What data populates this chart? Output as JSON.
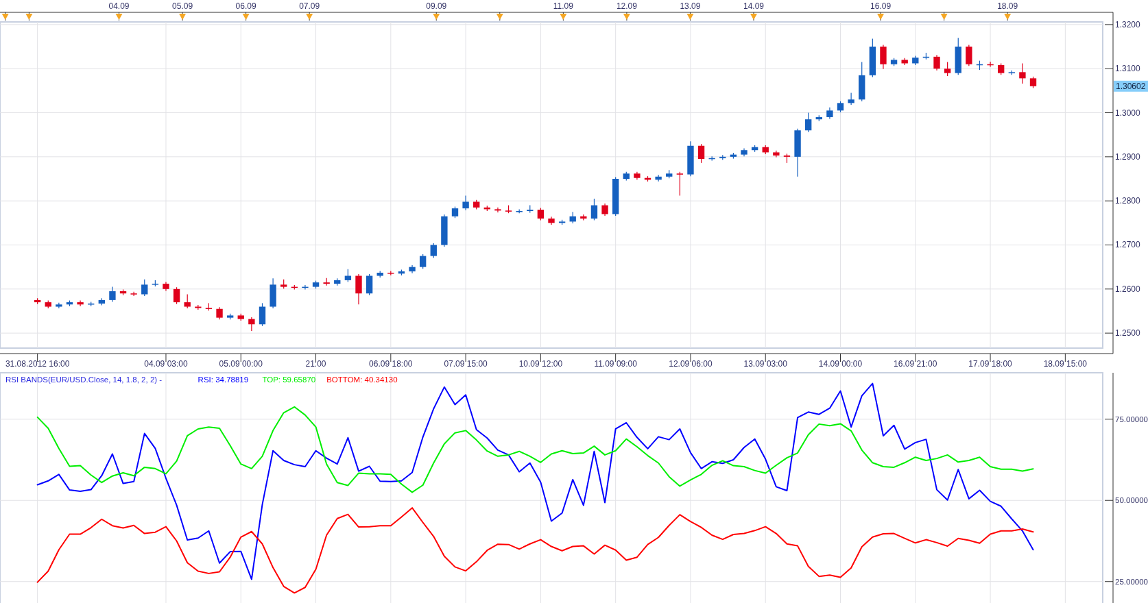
{
  "chart_data": [
    {
      "type": "candlestick",
      "grid": true,
      "categories": [
        null,
        null,
        null,
        "31.08.2012 16:00",
        null,
        null,
        null,
        null,
        null,
        null,
        null,
        null,
        null,
        null,
        null,
        "04.09 03:00",
        null,
        null,
        null,
        null,
        null,
        null,
        "05.09 00:00",
        null,
        null,
        null,
        null,
        null,
        null,
        "21:00",
        null,
        null,
        null,
        null,
        null,
        null,
        "06.09 18:00",
        null,
        null,
        null,
        null,
        null,
        null,
        "07.09 15:00",
        null,
        null,
        null,
        null,
        null,
        null,
        "10.09 12:00",
        null,
        null,
        null,
        null,
        null,
        null,
        "11.09 09:00",
        null,
        null,
        null,
        null,
        null,
        null,
        "12.09 06:00",
        null,
        null,
        null,
        null,
        null,
        null,
        "13.09 03:00",
        null,
        null,
        null,
        null,
        null,
        null,
        "14.09 00:00",
        null,
        null,
        null,
        null,
        null,
        null,
        "16.09 21:00",
        null,
        null,
        null,
        null,
        null,
        null,
        "17.09 18:00",
        null,
        null,
        null,
        null,
        null,
        null,
        "18.09 15:00",
        null,
        null,
        null
      ],
      "x2lim": [
        "2012-09-02T03:00",
        "2012-09-19T12:00"
      ],
      "x2ticks": [
        {
          "value": "2012-09-02T05:00",
          "label": null
        },
        {
          "value": "2012-09-02T14:00",
          "label": null
        },
        {
          "value": "2012-09-04",
          "label": "04.09"
        },
        {
          "value": "2012-09-05",
          "label": "05.09"
        },
        {
          "value": "2012-09-06",
          "label": "06.09"
        },
        {
          "value": "2012-09-07",
          "label": "07.09"
        },
        {
          "value": "2012-09-09",
          "label": "09.09"
        },
        {
          "value": "2012-09-10",
          "label": null
        },
        {
          "value": "2012-09-11",
          "label": "11.09"
        },
        {
          "value": "2012-09-12",
          "label": "12.09"
        },
        {
          "value": "2012-09-13",
          "label": "13.09"
        },
        {
          "value": "2012-09-14",
          "label": "14.09"
        },
        {
          "value": "2012-09-16",
          "label": "16.09"
        },
        {
          "value": "2012-09-17",
          "label": null
        },
        {
          "value": "2012-09-18",
          "label": "18.09"
        }
      ],
      "ylim": [
        1.2466,
        1.3206
      ],
      "yticks": [
        {
          "value": 1.25,
          "label": "1.2500"
        },
        {
          "value": 1.26,
          "label": "1.2600"
        },
        {
          "value": 1.27,
          "label": "1.2700"
        },
        {
          "value": 1.28,
          "label": "1.2800"
        },
        {
          "value": 1.29,
          "label": "1.2900"
        },
        {
          "value": 1.3,
          "label": "1.3000"
        },
        {
          "value": 1.31,
          "label": "1.3100"
        },
        {
          "value": 1.32,
          "label": "1.3200"
        }
      ],
      "annotations": [
        "1.30602"
      ],
      "ohlc": [
        null,
        null,
        null,
        [
          1.2575,
          1.2579,
          1.2566,
          1.257
        ],
        [
          1.257,
          1.2574,
          1.2556,
          1.256
        ],
        [
          1.256,
          1.2569,
          1.2556,
          1.2565
        ],
        [
          1.2565,
          1.2574,
          1.2561,
          1.257
        ],
        [
          1.257,
          1.2574,
          1.2561,
          1.2565
        ],
        [
          1.2565,
          1.2571,
          1.2561,
          1.2567
        ],
        [
          1.2567,
          1.2579,
          1.2563,
          1.2575
        ],
        [
          1.2575,
          1.2605,
          1.2571,
          1.2595
        ],
        [
          1.2595,
          1.2599,
          1.2586,
          1.259
        ],
        [
          1.259,
          1.2594,
          1.2584,
          1.2588
        ],
        [
          1.2588,
          1.2622,
          1.2584,
          1.261
        ],
        [
          1.261,
          1.262,
          1.2606,
          1.2612
        ],
        [
          1.2612,
          1.2616,
          1.2596,
          1.26
        ],
        [
          1.26,
          1.2604,
          1.2566,
          1.257
        ],
        [
          1.257,
          1.2588,
          1.2556,
          1.256
        ],
        [
          1.256,
          1.2564,
          1.2553,
          1.2557
        ],
        [
          1.2557,
          1.2568,
          1.2551,
          1.2555
        ],
        [
          1.2555,
          1.2559,
          1.2531,
          1.2535
        ],
        [
          1.2535,
          1.2544,
          1.2531,
          1.254
        ],
        [
          1.254,
          1.2544,
          1.2528,
          1.2532
        ],
        [
          1.2532,
          1.2536,
          1.2505,
          1.252
        ],
        [
          1.252,
          1.2568,
          1.2516,
          1.256
        ],
        [
          1.256,
          1.2624,
          1.2556,
          1.261
        ],
        [
          1.261,
          1.2622,
          1.2601,
          1.2605
        ],
        [
          1.2605,
          1.2609,
          1.2599,
          1.2603
        ],
        [
          1.2603,
          1.2609,
          1.2599,
          1.2605
        ],
        [
          1.2605,
          1.2619,
          1.2601,
          1.2615
        ],
        [
          1.2615,
          1.2625,
          1.2608,
          1.2612
        ],
        [
          1.2612,
          1.2624,
          1.2608,
          1.262
        ],
        [
          1.262,
          1.2645,
          1.2616,
          1.263
        ],
        [
          1.263,
          1.2634,
          1.2565,
          1.259
        ],
        [
          1.259,
          1.2634,
          1.2586,
          1.263
        ],
        [
          1.263,
          1.2641,
          1.2626,
          1.2637
        ],
        [
          1.2637,
          1.2641,
          1.2631,
          1.2635
        ],
        [
          1.2635,
          1.2644,
          1.2631,
          1.264
        ],
        [
          1.264,
          1.2654,
          1.2636,
          1.265
        ],
        [
          1.265,
          1.2679,
          1.2646,
          1.2675
        ],
        [
          1.2675,
          1.2704,
          1.2671,
          1.27
        ],
        [
          1.27,
          1.2769,
          1.2696,
          1.2765
        ],
        [
          1.2765,
          1.2787,
          1.2761,
          1.2783
        ],
        [
          1.2783,
          1.2812,
          1.2779,
          1.2798
        ],
        [
          1.2798,
          1.2802,
          1.2781,
          1.2785
        ],
        [
          1.2785,
          1.2789,
          1.2777,
          1.2781
        ],
        [
          1.2781,
          1.2785,
          1.2774,
          1.2778
        ],
        [
          1.2778,
          1.279,
          1.2772,
          1.2776
        ],
        [
          1.2776,
          1.2781,
          1.2772,
          1.2777
        ],
        [
          1.2777,
          1.279,
          1.2773,
          1.278
        ],
        [
          1.278,
          1.2784,
          1.2756,
          1.276
        ],
        [
          1.276,
          1.2764,
          1.2746,
          1.275
        ],
        [
          1.275,
          1.2757,
          1.2746,
          1.2753
        ],
        [
          1.2753,
          1.2775,
          1.2749,
          1.2765
        ],
        [
          1.2765,
          1.2769,
          1.2756,
          1.276
        ],
        [
          1.276,
          1.2805,
          1.2756,
          1.279
        ],
        [
          1.279,
          1.2794,
          1.2766,
          1.277
        ],
        [
          1.277,
          1.2854,
          1.2766,
          1.285
        ],
        [
          1.285,
          1.2866,
          1.2846,
          1.2862
        ],
        [
          1.2862,
          1.2866,
          1.2848,
          1.2852
        ],
        [
          1.2852,
          1.2856,
          1.2844,
          1.2848
        ],
        [
          1.2848,
          1.2859,
          1.2844,
          1.2855
        ],
        [
          1.2855,
          1.287,
          1.2851,
          1.2862
        ],
        [
          1.2862,
          1.2866,
          1.2812,
          1.286
        ],
        [
          1.286,
          1.2935,
          1.2856,
          1.2925
        ],
        [
          1.2925,
          1.2929,
          1.2886,
          1.2895
        ],
        [
          1.2895,
          1.2901,
          1.2891,
          1.2897
        ],
        [
          1.2897,
          1.2904,
          1.2893,
          1.29
        ],
        [
          1.29,
          1.2909,
          1.2896,
          1.2905
        ],
        [
          1.2905,
          1.2919,
          1.2901,
          1.2915
        ],
        [
          1.2915,
          1.2926,
          1.2911,
          1.2922
        ],
        [
          1.2922,
          1.2926,
          1.2906,
          1.291
        ],
        [
          1.291,
          1.2914,
          1.2899,
          1.2903
        ],
        [
          1.2903,
          1.2907,
          1.2886,
          1.29
        ],
        [
          1.29,
          1.2964,
          1.2855,
          1.296
        ],
        [
          1.296,
          1.3,
          1.2956,
          1.2985
        ],
        [
          1.2985,
          1.2994,
          1.2981,
          1.299
        ],
        [
          1.299,
          1.3012,
          1.2986,
          1.3005
        ],
        [
          1.3005,
          1.3026,
          1.3001,
          1.3022
        ],
        [
          1.3022,
          1.3045,
          1.3018,
          1.303
        ],
        [
          1.303,
          1.3115,
          1.3026,
          1.3085
        ],
        [
          1.3085,
          1.3168,
          1.3081,
          1.315
        ],
        [
          1.315,
          1.3154,
          1.3099,
          1.311
        ],
        [
          1.311,
          1.3124,
          1.3106,
          1.312
        ],
        [
          1.312,
          1.3124,
          1.3108,
          1.3112
        ],
        [
          1.3112,
          1.3129,
          1.3108,
          1.3125
        ],
        [
          1.3125,
          1.3136,
          1.3121,
          1.3127
        ],
        [
          1.3127,
          1.3131,
          1.3096,
          1.31
        ],
        [
          1.31,
          1.3115,
          1.3083,
          1.309
        ],
        [
          1.309,
          1.317,
          1.3086,
          1.315
        ],
        [
          1.315,
          1.3154,
          1.3106,
          1.311
        ],
        [
          1.311,
          1.3118,
          1.3097,
          1.311
        ],
        [
          1.311,
          1.3116,
          1.3104,
          1.3108
        ],
        [
          1.3108,
          1.3112,
          1.3086,
          1.309
        ],
        [
          1.309,
          1.3096,
          1.3086,
          1.3092
        ],
        [
          1.3092,
          1.3112,
          1.3066,
          1.3078
        ],
        [
          1.3078,
          1.3082,
          1.3056,
          1.30602
        ],
        null,
        null,
        null,
        null,
        null,
        null
      ]
    },
    {
      "type": "line",
      "title": "RSI BANDS(EUR/USD.Close, 14, 1.8, 2, 2) -",
      "grid": true,
      "tick_labels": "y",
      "categories": [
        null,
        null,
        null,
        null,
        null,
        null,
        null,
        null,
        null,
        null,
        null,
        null,
        null,
        null,
        null,
        null,
        null,
        null,
        null,
        null,
        null,
        null,
        null,
        null,
        null,
        null,
        null,
        null,
        null,
        null,
        null,
        null,
        null,
        null,
        null,
        null,
        null,
        null,
        null,
        null,
        null,
        null,
        null,
        null,
        null,
        null,
        null,
        null,
        null,
        null,
        null,
        null,
        null,
        null,
        null,
        null,
        null,
        null,
        null,
        null,
        null,
        null,
        null,
        null,
        null,
        null,
        null,
        null,
        null,
        null,
        null,
        null,
        null,
        null,
        null,
        null,
        null,
        null,
        null,
        null,
        null,
        null,
        null,
        null,
        null,
        null,
        null,
        null,
        null,
        null,
        null,
        null,
        null,
        null,
        null,
        null,
        null,
        null,
        null,
        null,
        null,
        null,
        null
      ],
      "ylim": [
        18.4,
        89.3
      ],
      "yticks": [
        {
          "value": 25,
          "label": "25.00000"
        },
        {
          "value": 50,
          "label": "50.00000"
        },
        {
          "value": 75,
          "label": "75.00000"
        }
      ],
      "series": [
        {
          "name": "RSI: 34.78819",
          "color": "#0000ff",
          "values": [
            null,
            null,
            null,
            54.8,
            56,
            58,
            53.2,
            52.8,
            53.3,
            57.6,
            64.3,
            55.2,
            55.8,
            70.6,
            66,
            56.8,
            48.5,
            37.8,
            38.4,
            40.6,
            30.7,
            34.2,
            34.3,
            25.7,
            48.7,
            65.3,
            62.3,
            61,
            60.4,
            65.3,
            63,
            61.2,
            69.3,
            59,
            60.5,
            55.9,
            55.8,
            56,
            58.6,
            69.5,
            78.2,
            84.9,
            79.5,
            82.5,
            71.8,
            69.2,
            65.5,
            64,
            58.8,
            61.5,
            55.6,
            43.6,
            46.1,
            56.4,
            48.5,
            65.1,
            49.3,
            72,
            73.9,
            69.4,
            65.9,
            69.6,
            68.7,
            72,
            64.7,
            59.8,
            61.9,
            61.4,
            62.5,
            66.3,
            68.9,
            62.7,
            54.2,
            53,
            75.5,
            77.2,
            76.5,
            78.4,
            83.7,
            72.6,
            82.2,
            86,
            69.9,
            73.1,
            65.8,
            67.8,
            68.8,
            53.3,
            50.1,
            59.5,
            50.5,
            53.1,
            49.7,
            48.2,
            44.3,
            40.6,
            34.8,
            null,
            null,
            null,
            null,
            null,
            null
          ]
        },
        {
          "name": "TOP: 59.65870",
          "color": "#00ee00",
          "values": [
            null,
            null,
            null,
            75.6,
            72.2,
            66,
            60.5,
            60.7,
            57.8,
            55.5,
            57.5,
            58.5,
            57.6,
            60.2,
            59.8,
            58.2,
            62.1,
            69.9,
            72,
            72.6,
            72.2,
            66.9,
            61.2,
            59.8,
            63.6,
            71.5,
            77,
            78.8,
            76.3,
            72.6,
            61.2,
            55.5,
            54.6,
            58.4,
            58.2,
            58.2,
            58,
            55,
            52.5,
            54.7,
            61.5,
            67.4,
            70.8,
            71.5,
            68.6,
            65.2,
            63.6,
            64,
            65.1,
            63.6,
            61.7,
            64.3,
            65.3,
            64.4,
            64.6,
            66.7,
            64,
            65.3,
            68.9,
            66.5,
            63.8,
            61.5,
            57.3,
            54.4,
            56.3,
            58,
            60.8,
            62.2,
            60.7,
            60.4,
            59.2,
            58.4,
            60.8,
            63.1,
            64.6,
            70.2,
            73.5,
            73,
            73.6,
            71.4,
            65.5,
            61.6,
            60.4,
            60.2,
            61.6,
            63.3,
            62.3,
            62.9,
            64,
            61.8,
            62.3,
            63.3,
            60.4,
            59.6,
            59.6,
            59,
            59.7,
            null,
            null,
            null,
            null,
            null,
            null
          ]
        },
        {
          "name": "BOTTOM: 40.34130",
          "color": "#ff0000",
          "values": [
            null,
            null,
            null,
            24.8,
            28.2,
            34.8,
            39.6,
            39.6,
            41.6,
            44.2,
            42.2,
            41.5,
            42.3,
            39.8,
            40.2,
            41.9,
            37.5,
            30.8,
            28.2,
            27.5,
            28,
            32.5,
            38.7,
            40.4,
            36.6,
            29.3,
            23.5,
            21.5,
            23.2,
            28.8,
            39.3,
            44.4,
            45.7,
            41.8,
            41.9,
            42.2,
            42.2,
            44.9,
            47.7,
            43.2,
            38.9,
            32.8,
            29.5,
            28.3,
            31.1,
            34.6,
            36.5,
            36.4,
            35,
            36.6,
            37.9,
            35.8,
            34.5,
            35.8,
            36,
            33.5,
            36.2,
            34.7,
            31.6,
            32.5,
            36.4,
            38.6,
            42.3,
            45.6,
            43.5,
            41.7,
            39.3,
            38,
            39.5,
            39.8,
            40.7,
            41.9,
            39.8,
            36.6,
            36,
            29.7,
            26.6,
            27,
            26.3,
            29.2,
            35.7,
            38.7,
            39.7,
            39.8,
            38.3,
            36.9,
            37.9,
            37,
            35.9,
            38.3,
            37.7,
            36.8,
            39.6,
            40.6,
            40.6,
            41.2,
            40.3,
            null,
            null,
            null,
            null,
            null,
            null
          ]
        }
      ]
    }
  ]
}
